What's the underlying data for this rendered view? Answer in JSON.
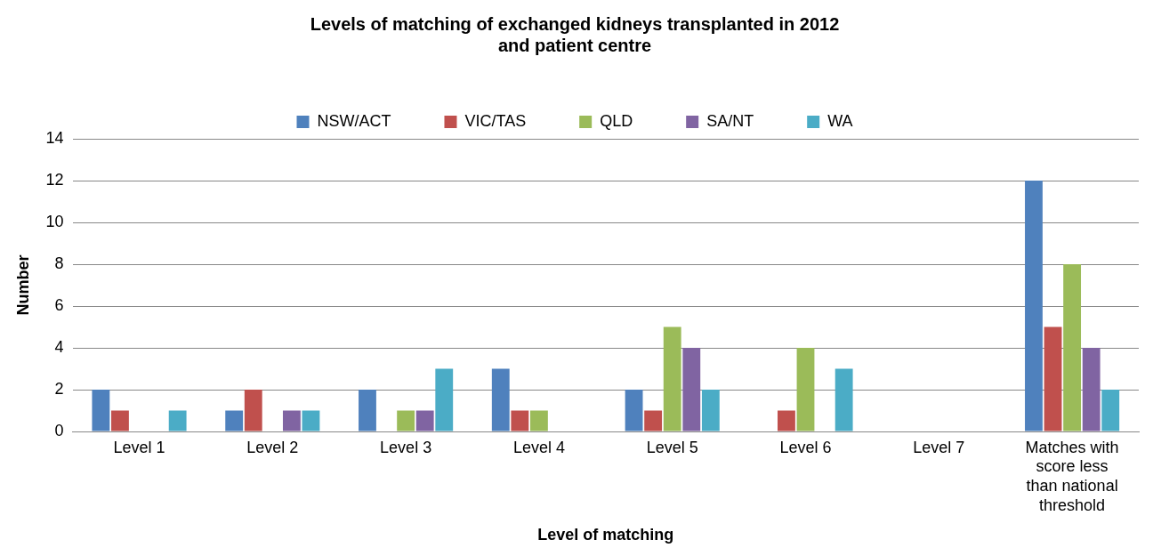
{
  "chart_data": {
    "type": "bar",
    "title": "Levels of matching of exchanged kidneys transplanted in 2012 and patient centre",
    "xlabel": "Level of matching",
    "ylabel": "Number",
    "categories": [
      "Level 1",
      "Level 2",
      "Level 3",
      "Level 4",
      "Level 5",
      "Level 6",
      "Level 7",
      "Matches with score less than national threshold"
    ],
    "series": [
      {
        "name": "NSW/ACT",
        "color": "#4f81bd",
        "values": [
          2,
          1,
          2,
          3,
          2,
          0,
          0,
          12
        ]
      },
      {
        "name": "VIC/TAS",
        "color": "#c0504d",
        "values": [
          1,
          2,
          0,
          1,
          1,
          1,
          0,
          5
        ]
      },
      {
        "name": "QLD",
        "color": "#9bbb59",
        "values": [
          0,
          0,
          1,
          1,
          5,
          4,
          0,
          8
        ]
      },
      {
        "name": "SA/NT",
        "color": "#8064a2",
        "values": [
          0,
          1,
          1,
          0,
          4,
          0,
          0,
          4
        ]
      },
      {
        "name": "WA",
        "color": "#4bacc6",
        "values": [
          1,
          1,
          3,
          0,
          2,
          3,
          0,
          2
        ]
      }
    ],
    "ylim": [
      0,
      14
    ],
    "yticks": [
      0,
      2,
      4,
      6,
      8,
      10,
      12,
      14
    ],
    "grid": "y",
    "legend": "top"
  }
}
